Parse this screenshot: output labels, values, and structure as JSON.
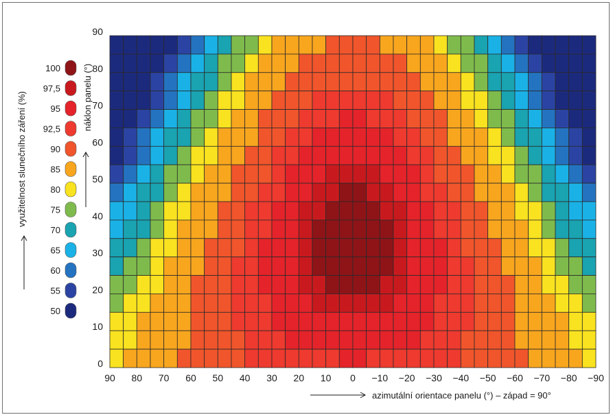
{
  "chart_data": {
    "type": "heatmap",
    "title": "",
    "xlabel": "azimutální orientace panelu (°) – západ = 90°",
    "ylabel": "náklon panelu (°)",
    "legend_title": "využitelnost slunečního záření (%)",
    "x_ticks": [
      "90",
      "80",
      "70",
      "60",
      "50",
      "40",
      "30",
      "20",
      "10",
      "0",
      "−10",
      "−20",
      "−30",
      "−40",
      "−50",
      "−60",
      "−70",
      "−80",
      "−90"
    ],
    "y_ticks": [
      "90",
      "80",
      "70",
      "60",
      "50",
      "40",
      "30",
      "20",
      "10",
      "0"
    ],
    "x_range": [
      90,
      -90
    ],
    "y_range": [
      0,
      90
    ],
    "grid": true,
    "legend_position": "left",
    "legend": [
      {
        "label": "100",
        "color": "#8e1418"
      },
      {
        "label": "97,5",
        "color": "#c81a1e"
      },
      {
        "label": "95",
        "color": "#e5232a"
      },
      {
        "label": "92,5",
        "color": "#ee3a2f"
      },
      {
        "label": "90",
        "color": "#f1552c"
      },
      {
        "label": "85",
        "color": "#f8a61e"
      },
      {
        "label": "80",
        "color": "#f9e21f"
      },
      {
        "label": "75",
        "color": "#7fbb4c"
      },
      {
        "label": "70",
        "color": "#1aa3b1"
      },
      {
        "label": "65",
        "color": "#1ab2e6"
      },
      {
        "label": "60",
        "color": "#2473c0"
      },
      {
        "label": "55",
        "color": "#2b44a3"
      },
      {
        "label": "50",
        "color": "#1c2a7d"
      }
    ]
  }
}
